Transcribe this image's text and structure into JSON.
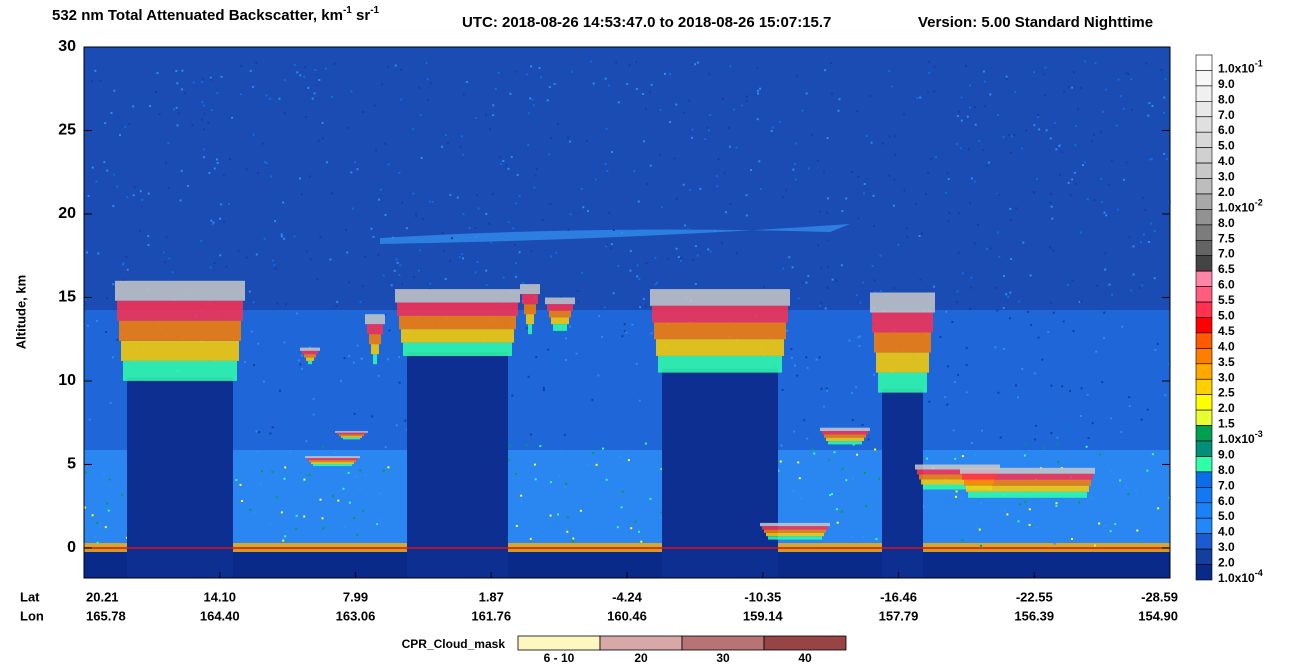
{
  "chart_data": {
    "type": "curtain",
    "title_parts": [
      "532 nm Total Attenuated Backscatter, km",
      "-1",
      " sr",
      "-1"
    ],
    "utc": "UTC:  2018-08-26 14:53:47.0  to  2018-08-26 15:07:15.7",
    "version": "Version: 5.00  Standard  Nighttime",
    "y_label": "Altitude, km",
    "ylim": [
      -1.8,
      30
    ],
    "yticks": [
      0,
      5,
      10,
      15,
      20,
      25,
      30
    ],
    "x_row_labels": [
      "Lat",
      "Lon"
    ],
    "lat_labels": [
      "20.21",
      "14.10",
      "7.99",
      "1.87",
      "-4.24",
      "-10.35",
      "-16.46",
      "-22.55",
      "-28.59"
    ],
    "lon_labels": [
      "165.78",
      "164.40",
      "163.06",
      "161.76",
      "160.46",
      "159.14",
      "157.79",
      "156.39",
      "154.90"
    ],
    "colorbar": [
      {
        "label": "1.0x10",
        "sup": "-1",
        "color": "#ffffff"
      },
      {
        "label": "9.0",
        "color": "#f7f7f7"
      },
      {
        "label": "8.0",
        "color": "#f0f0f0"
      },
      {
        "label": "7.0",
        "color": "#e8e8e8"
      },
      {
        "label": "6.0",
        "color": "#e0e0e0"
      },
      {
        "label": "5.0",
        "color": "#d8d8d8"
      },
      {
        "label": "4.0",
        "color": "#d0d0d0"
      },
      {
        "label": "3.0",
        "color": "#c8c8c8"
      },
      {
        "label": "2.0",
        "color": "#bdbdbd"
      },
      {
        "label": "1.0x10",
        "sup": "-2",
        "color": "#a8a8a8"
      },
      {
        "label": "8.0",
        "color": "#929292"
      },
      {
        "label": "7.5",
        "color": "#7c7c7c"
      },
      {
        "label": "7.0",
        "color": "#646464"
      },
      {
        "label": "6.5",
        "color": "#444444"
      },
      {
        "label": "6.0",
        "color": "#ff85a8"
      },
      {
        "label": "5.5",
        "color": "#ff5c80"
      },
      {
        "label": "5.0",
        "color": "#ff3050"
      },
      {
        "label": "4.5",
        "color": "#ff0000"
      },
      {
        "label": "4.0",
        "color": "#ff5a00"
      },
      {
        "label": "3.5",
        "color": "#ff7e00"
      },
      {
        "label": "3.0",
        "color": "#ffa800"
      },
      {
        "label": "2.5",
        "color": "#ffd000"
      },
      {
        "label": "2.0",
        "color": "#ffff00"
      },
      {
        "label": "1.5",
        "color": "#e6ff30"
      },
      {
        "label": "1.0x10",
        "sup": "-3",
        "color": "#00a050"
      },
      {
        "label": "9.0",
        "color": "#00907a"
      },
      {
        "label": "8.0",
        "color": "#30ffaa"
      },
      {
        "label": "7.0",
        "color": "#0a6ee8"
      },
      {
        "label": "6.0",
        "color": "#1478f0"
      },
      {
        "label": "5.0",
        "color": "#1a82f5"
      },
      {
        "label": "4.0",
        "color": "#2088f8"
      },
      {
        "label": "3.0",
        "color": "#1a5cd0"
      },
      {
        "label": "2.0",
        "color": "#13409e"
      },
      {
        "label": "1.0x10",
        "sup": "-4",
        "color": "#0a2a8a"
      }
    ],
    "cloud_mask": {
      "title": "CPR_Cloud_mask",
      "bins": [
        {
          "label": "6 - 10",
          "color": "#fff7c0"
        },
        {
          "label": "20",
          "color": "#d8a8a8"
        },
        {
          "label": "30",
          "color": "#b87474"
        },
        {
          "label": "40",
          "color": "#964444"
        }
      ]
    }
  }
}
